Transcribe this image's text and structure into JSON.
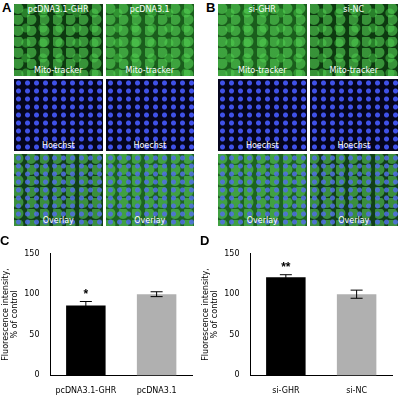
{
  "panels": [
    {
      "label": "A",
      "columns": [
        "pcDNA3.1-GHR",
        "pcDNA3.1"
      ],
      "rows": [
        "Mito-tracker",
        "Hoechst",
        "Overlay"
      ]
    },
    {
      "label": "B",
      "columns": [
        "si-GHR",
        "si-NC"
      ],
      "rows": [
        "Mito-tracker",
        "Hoechst",
        "Overlay"
      ]
    }
  ],
  "chart_data": [
    {
      "type": "bar",
      "title": "C",
      "categories": [
        "pcDNA3.1-GHR",
        "pcDNA3.1"
      ],
      "values": [
        86,
        100
      ],
      "errors": [
        5,
        3
      ],
      "colors": [
        "#000000",
        "#b0b0b0"
      ],
      "ylim": [
        0,
        150
      ],
      "yticks": [
        0,
        50,
        100,
        150
      ],
      "grid": false,
      "y_label": [
        "Fluorescence intensity,",
        "% of control"
      ],
      "annotations": [
        {
          "category": "pcDNA3.1-GHR",
          "text": "*"
        }
      ]
    },
    {
      "type": "bar",
      "title": "D",
      "categories": [
        "si-GHR",
        "si-NC"
      ],
      "values": [
        121,
        100
      ],
      "errors": [
        3,
        5
      ],
      "colors": [
        "#000000",
        "#b0b0b0"
      ],
      "ylim": [
        0,
        150
      ],
      "yticks": [
        0,
        50,
        100,
        150
      ],
      "grid": false,
      "y_label": [
        "Fluorescence intensity,",
        "% of control"
      ],
      "annotations": [
        {
          "category": "si-GHR",
          "text": "**"
        }
      ]
    }
  ]
}
